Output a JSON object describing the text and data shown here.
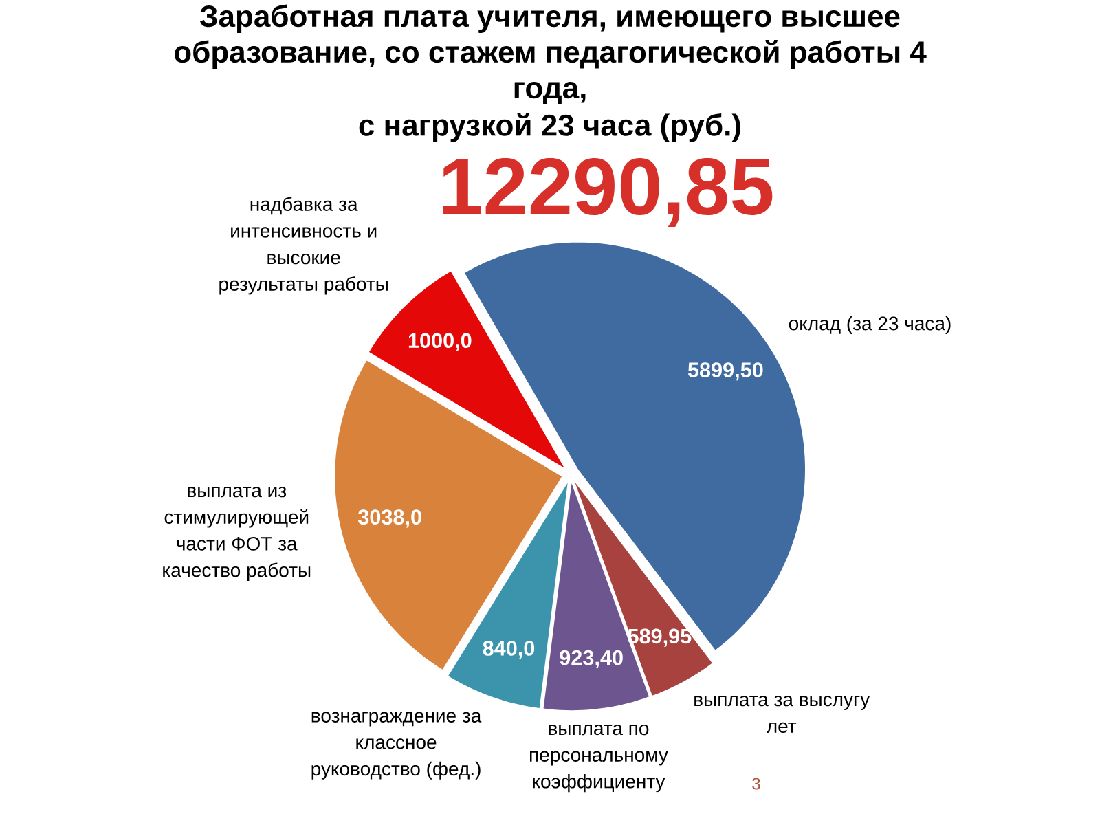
{
  "chart_data": {
    "type": "pie",
    "title": "Заработная плата учителя, имеющего высшее образование, со стажем педагогической работы 4 года,",
    "subtitle": "с нагрузкой 23 часа (руб.)",
    "categories": [
      "оклад (за 23 часа)",
      "выплата за выслугу лет",
      "выплата по персональному коэффициенту",
      "вознаграждение за классное руководство (фед.)",
      "выплата из стимулирующей части ФОТ за качество работы",
      "надбавка за интенсивность и высокие результаты работы"
    ],
    "values": [
      5899.5,
      589.95,
      923.4,
      840.0,
      3038.0,
      1000.0
    ],
    "value_labels": [
      "5899,50",
      "589,95",
      "923,40",
      "840,0",
      "3038,0",
      "1000,0"
    ],
    "colors": [
      "#3f6ba1",
      "#a8423f",
      "#6d5590",
      "#3b94ab",
      "#d9823c",
      "#e40808"
    ],
    "annotations": [
      "12290,85",
      "3"
    ]
  }
}
